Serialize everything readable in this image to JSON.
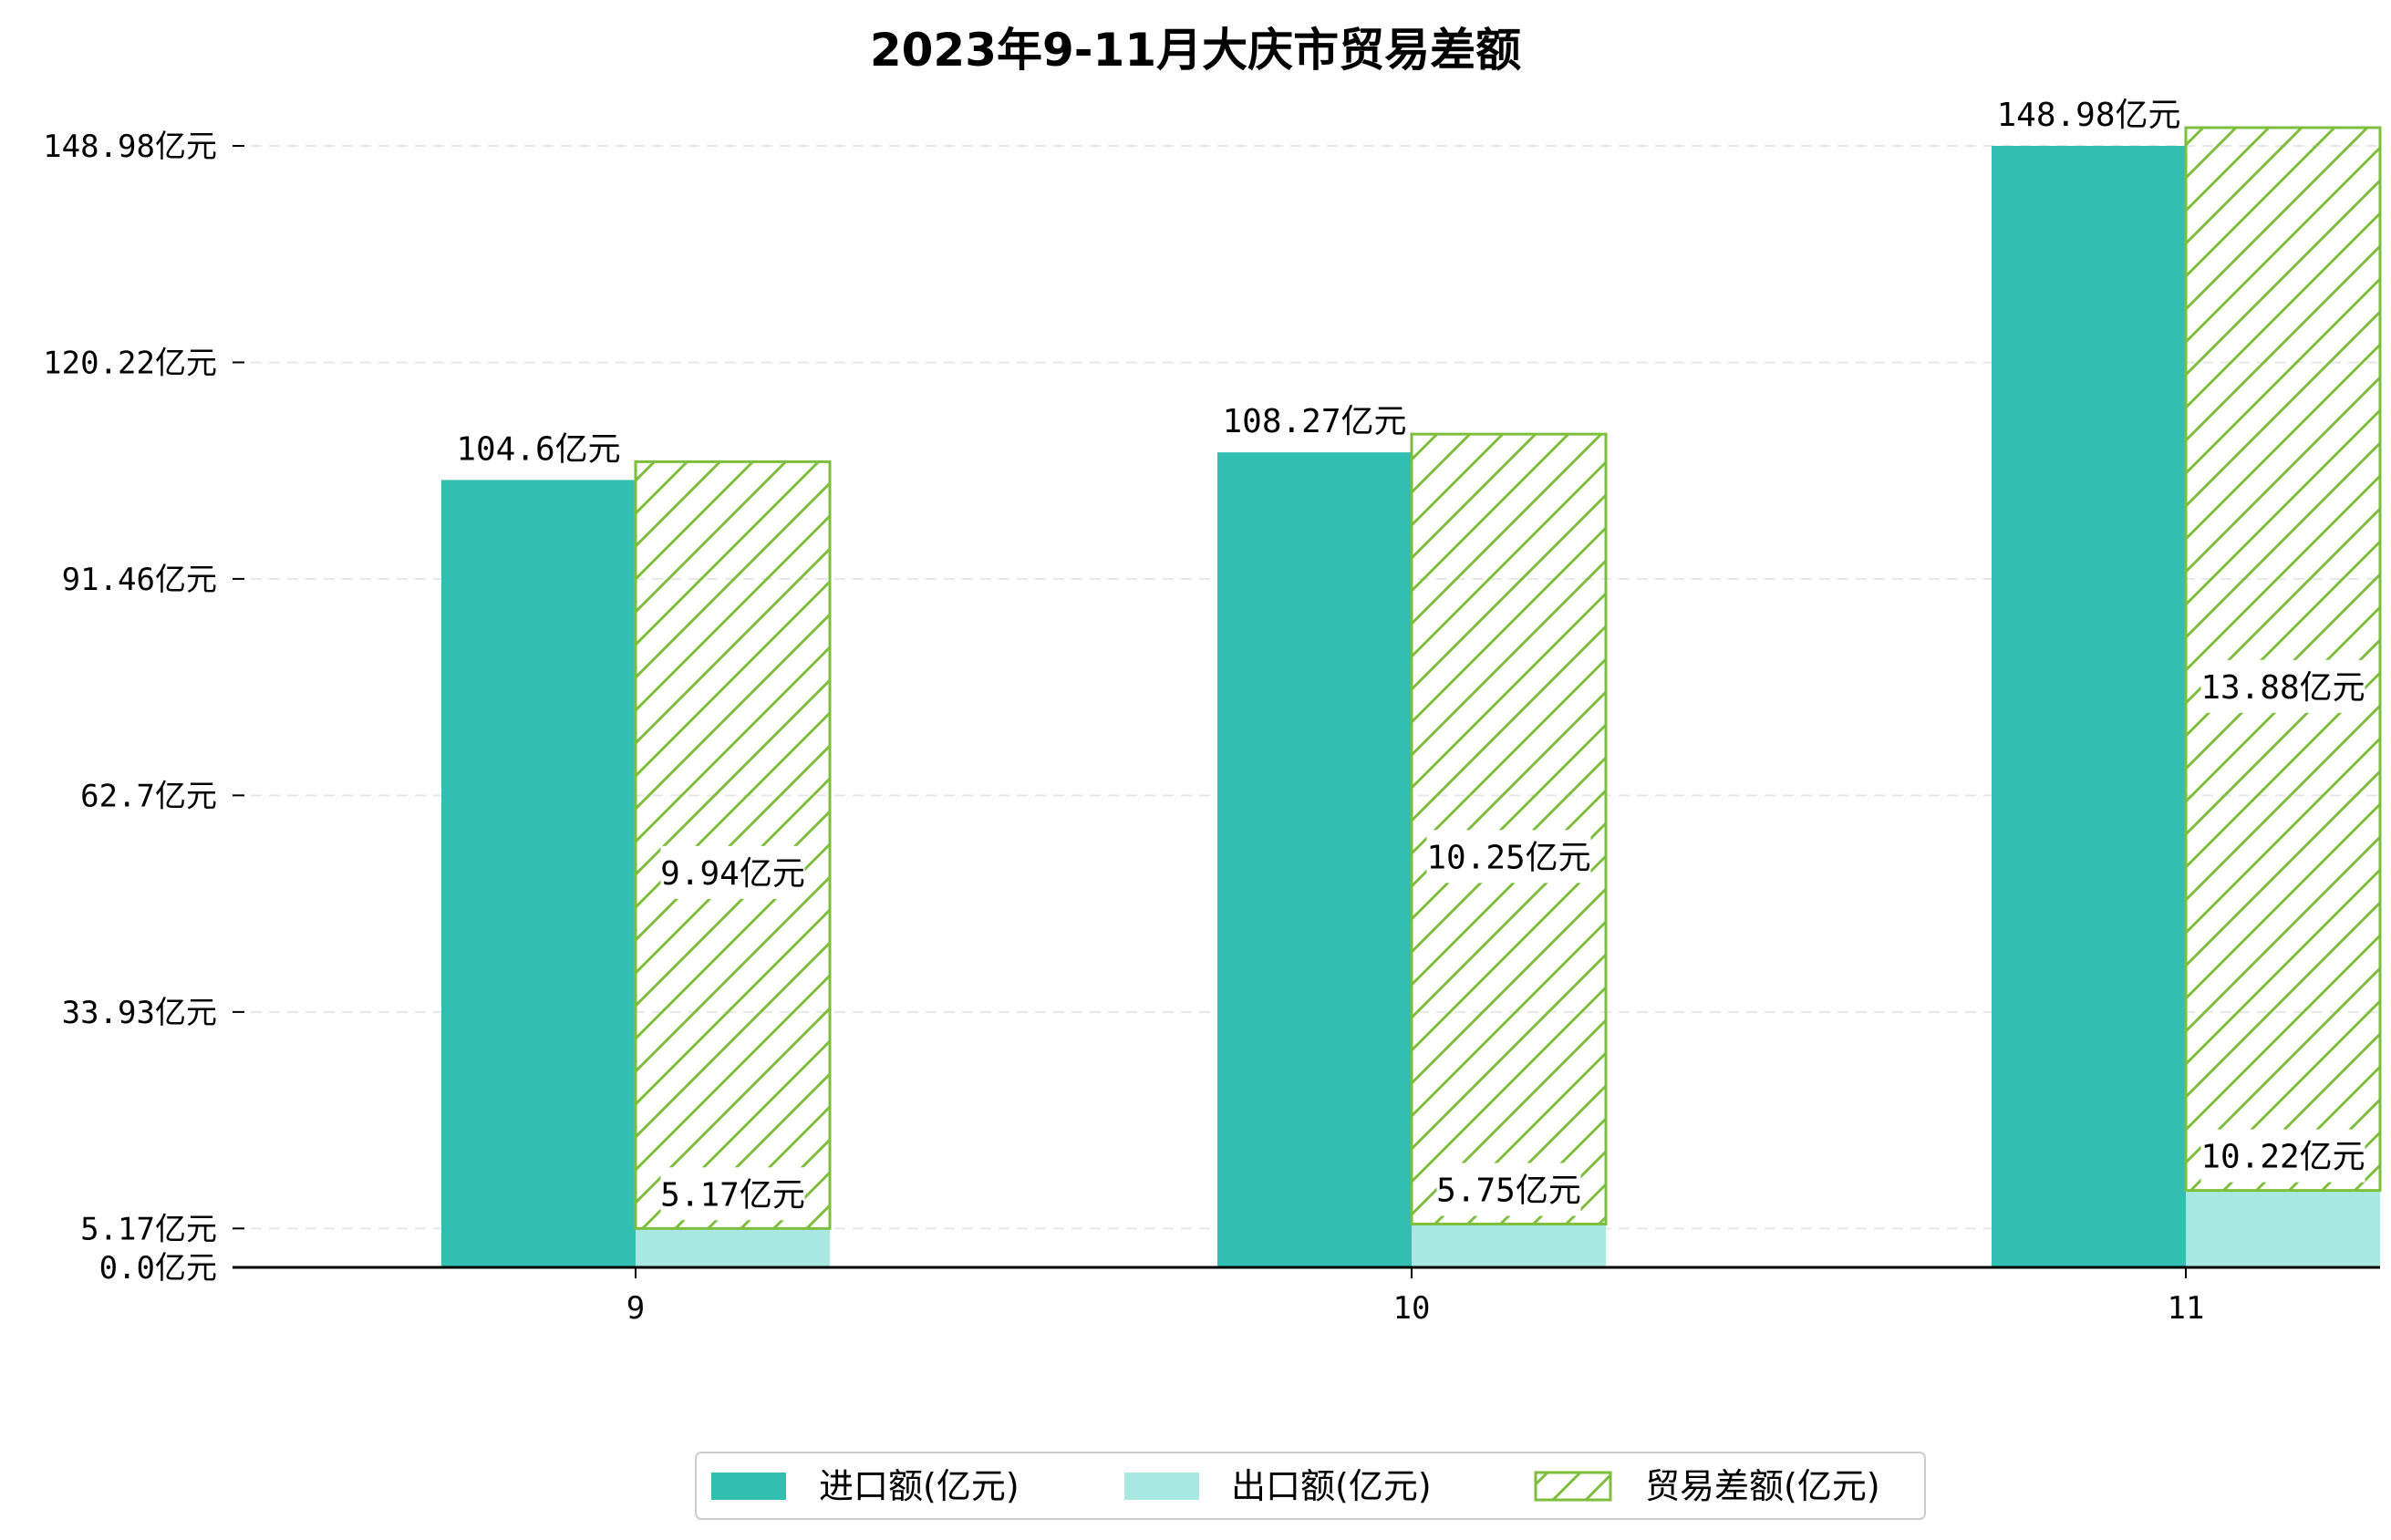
{
  "chart_data": {
    "type": "bar",
    "title": "2023年9-11月大庆市贸易差额",
    "categories": [
      "9",
      "10",
      "11"
    ],
    "unit": "亿元",
    "ylim": [
      0,
      148.98
    ],
    "yticks": [
      0.0,
      5.17,
      33.93,
      62.7,
      91.46,
      120.22,
      148.98
    ],
    "ytick_labels": [
      "0.0亿元",
      "5.17亿元",
      "33.93亿元",
      "62.7亿元",
      "91.46亿元",
      "120.22亿元",
      "148.98亿元"
    ],
    "grid": "y-dashed",
    "legend_position": "bottom-center",
    "series": [
      {
        "name": "进口额(亿元)",
        "legend_label": "进口额(亿元)",
        "values": [
          104.6,
          108.27,
          148.98
        ],
        "labels": [
          "104.6亿元",
          "108.27亿元",
          "148.98亿元"
        ],
        "color": "#32BFB1",
        "style": "solid"
      },
      {
        "name": "出口额(亿元)",
        "legend_label": "出口额(亿元)",
        "values": [
          5.17,
          5.75,
          10.22
        ],
        "labels": [
          "5.17亿元",
          "5.75亿元",
          "10.22亿元"
        ],
        "color": "#A9E8E2",
        "style": "solid"
      },
      {
        "name": "贸易差额(亿元)",
        "legend_label": "贸易差额(亿元)",
        "values": [
          9.94,
          10.25,
          13.88
        ],
        "labels": [
          "9.94亿元",
          "10.25亿元",
          "13.88亿元"
        ],
        "color": "#7DBE3C",
        "style": "hatched"
      }
    ]
  }
}
